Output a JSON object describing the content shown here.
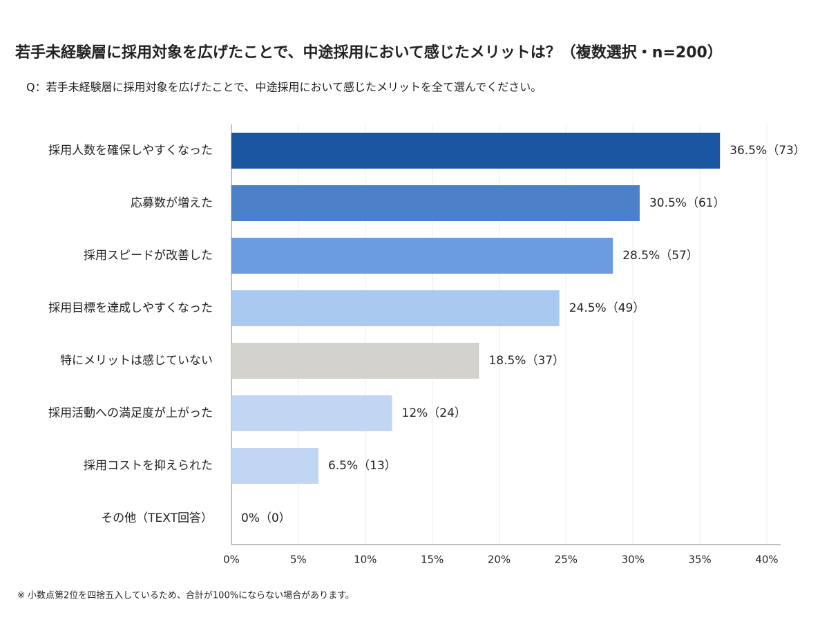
{
  "chart_data": {
    "type": "bar",
    "title": "若手未経験層に採用対象を広げたことで、中途採用において感じたメリットは？（複数選択・n=200）",
    "subtitle": "Q：若手未経験層に採用対象を広げたことで、中途採用において感じたメリットを全て選んでください。",
    "footnote": "※ 小数点第2位を四捨五入しているため、合計が100%にならない場合があります。",
    "categories": [
      "採用人数を確保しやすくなった",
      "応募数が増えた",
      "採用スピードが改善した",
      "採用目標を達成しやすくなった",
      "特にメリットは感じていない",
      "採用活動への満足度が上がった",
      "採用コストを抑えられた",
      "その他（TEXT回答）"
    ],
    "values": [
      36.5,
      30.5,
      28.5,
      24.5,
      18.5,
      12,
      6.5,
      0
    ],
    "value_labels": [
      "36.5%（73）",
      "30.5%（61）",
      "28.5%（57）",
      "24.5%（49）",
      "18.5%（37）",
      "12%（24）",
      "6.5%（13）",
      "0%（0）"
    ],
    "colors": [
      "#1b56a1",
      "#4a81c9",
      "#6a9cdf",
      "#a9c9f1",
      "#d4d2cc",
      "#c0d6f2",
      "#c0d6f2",
      "#c0d6f2"
    ],
    "xlim": [
      0,
      40
    ],
    "xticks": [
      {
        "value": 0,
        "label": "0%"
      },
      {
        "value": 5,
        "label": "5%"
      },
      {
        "value": 10,
        "label": "10%"
      },
      {
        "value": 15,
        "label": "15%"
      },
      {
        "value": 20,
        "label": "20%"
      },
      {
        "value": 25,
        "label": "25%"
      },
      {
        "value": 30,
        "label": "30%"
      },
      {
        "value": 35,
        "label": "35%"
      },
      {
        "value": 40,
        "label": "40%"
      }
    ],
    "grid": true
  }
}
